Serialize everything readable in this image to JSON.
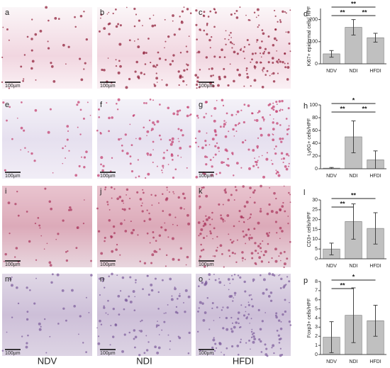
{
  "panels": [
    {
      "letter": "a",
      "scale": "100µm"
    },
    {
      "letter": "b",
      "scale": "100µm"
    },
    {
      "letter": "c",
      "scale": "100µm"
    },
    {
      "letter": "e",
      "scale": "100µm"
    },
    {
      "letter": "f",
      "scale": "100µm"
    },
    {
      "letter": "g",
      "scale": "100µm"
    },
    {
      "letter": "i",
      "scale": "100µm"
    },
    {
      "letter": "j",
      "scale": "100µm"
    },
    {
      "letter": "k",
      "scale": "100µm"
    },
    {
      "letter": "m",
      "scale": "100µm"
    },
    {
      "letter": "n",
      "scale": "100µm"
    },
    {
      "letter": "o",
      "scale": "100µm"
    }
  ],
  "columns": [
    "NDV",
    "NDI",
    "HFDI"
  ],
  "chart_data": [
    {
      "type": "bar",
      "panel": "d",
      "y_label": "Ki67+ epidermal cells/ HPF",
      "categories": [
        "NDV",
        "NDI",
        "HFDI"
      ],
      "values": [
        45,
        165,
        118
      ],
      "errors": [
        15,
        35,
        20
      ],
      "color": "#c0c0c0",
      "ylim": [
        0,
        250
      ],
      "yticks": [
        0,
        100,
        200
      ],
      "annotations": [
        {
          "text": "**",
          "from": "NDV",
          "to": "HFDI"
        },
        {
          "text": "**",
          "from": "NDV",
          "to": "NDI"
        },
        {
          "text": "**",
          "from": "NDI",
          "to": "HFDI"
        }
      ]
    },
    {
      "type": "bar",
      "panel": "h",
      "y_label": "Ly6G+ cells/HPF",
      "categories": [
        "NDV",
        "NDI",
        "HFDI"
      ],
      "values": [
        1,
        50,
        14
      ],
      "errors": [
        1,
        25,
        14
      ],
      "color": "#c0c0c0",
      "ylim": [
        0,
        100
      ],
      "yticks": [
        0,
        20,
        40,
        60,
        80,
        100
      ],
      "annotations": [
        {
          "text": "*",
          "from": "NDV",
          "to": "HFDI"
        },
        {
          "text": "**",
          "from": "NDV",
          "to": "NDI"
        },
        {
          "text": "**",
          "from": "NDI",
          "to": "HFDI"
        }
      ]
    },
    {
      "type": "bar",
      "panel": "l",
      "y_label": "CD3+ cells/HPF",
      "categories": [
        "NDV",
        "NDI",
        "HFDI"
      ],
      "values": [
        5,
        19,
        15.5
      ],
      "errors": [
        3,
        9,
        8
      ],
      "color": "#c0c0c0",
      "ylim": [
        0,
        30
      ],
      "yticks": [
        0,
        5,
        10,
        15,
        20,
        25,
        30
      ],
      "annotations": [
        {
          "text": "**",
          "from": "NDV",
          "to": "HFDI"
        },
        {
          "text": "**",
          "from": "NDV",
          "to": "NDI"
        }
      ]
    },
    {
      "type": "bar",
      "panel": "p",
      "y_label": "Foxp3+ cells/HPF",
      "categories": [
        "NDV",
        "NDI",
        "HFDI"
      ],
      "values": [
        1.9,
        4.3,
        3.7
      ],
      "errors": [
        1.7,
        3.0,
        1.7
      ],
      "color": "#c0c0c0",
      "ylim": [
        0,
        8
      ],
      "yticks": [
        0,
        1,
        2,
        3,
        4,
        5,
        6,
        7,
        8
      ],
      "annotations": [
        {
          "text": "*",
          "from": "NDV",
          "to": "HFDI"
        },
        {
          "text": "**",
          "from": "NDV",
          "to": "NDI"
        }
      ]
    }
  ]
}
